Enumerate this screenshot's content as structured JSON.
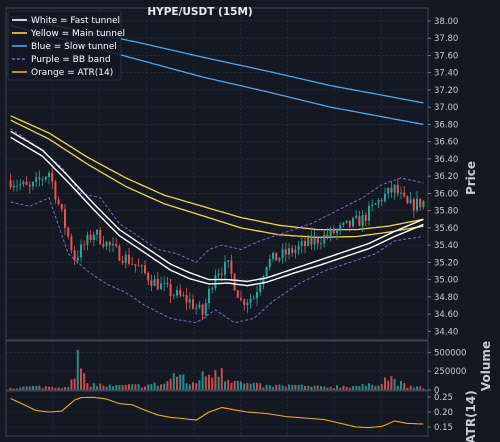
{
  "chart_data": {
    "type": "candlestick",
    "title": "HYPE/USDT (15M)",
    "colors": {
      "background": "#141823",
      "grid": "#2a3040",
      "up": "#26a69a",
      "down": "#ef5350",
      "fast_tunnel": "#ffffff",
      "main_tunnel": "#f5d34a",
      "slow_tunnel": "#4aa8f0",
      "bb_band": "#8a63d2",
      "atr": "#f5a623"
    },
    "legend": {
      "placement": "top-left",
      "entries": [
        {
          "label": "White = Fast tunnel",
          "color": "#ffffff",
          "dash": false
        },
        {
          "label": "Yellow = Main tunnel",
          "color": "#f5d34a",
          "dash": false
        },
        {
          "label": "Blue = Slow tunnel",
          "color": "#4aa8f0",
          "dash": false
        },
        {
          "label": "Purple = BB band",
          "color": "#8a63d2",
          "dash": true
        },
        {
          "label": "Orange = ATR(14)",
          "color": "#f5a623",
          "dash": false
        }
      ]
    },
    "price_panel": {
      "ylabel": "Price",
      "ylim": [
        34.3,
        38.15
      ],
      "yticks": [
        "34.40",
        "34.60",
        "34.80",
        "35.00",
        "35.20",
        "35.40",
        "35.60",
        "35.80",
        "36.00",
        "36.20",
        "36.40",
        "36.60",
        "36.80",
        "37.00",
        "37.20",
        "37.40",
        "37.60",
        "37.80",
        "38.00"
      ],
      "bars": 130,
      "candle_anchors": [
        [
          0,
          36.15
        ],
        [
          6,
          36.05
        ],
        [
          12,
          36.25
        ],
        [
          16,
          35.75
        ],
        [
          20,
          35.25
        ],
        [
          26,
          35.55
        ],
        [
          32,
          35.35
        ],
        [
          38,
          35.2
        ],
        [
          44,
          35.0
        ],
        [
          50,
          34.85
        ],
        [
          56,
          34.75
        ],
        [
          60,
          34.6
        ],
        [
          64,
          35.1
        ],
        [
          68,
          35.15
        ],
        [
          72,
          34.75
        ],
        [
          76,
          34.8
        ],
        [
          80,
          35.2
        ],
        [
          86,
          35.3
        ],
        [
          92,
          35.4
        ],
        [
          98,
          35.5
        ],
        [
          104,
          35.6
        ],
        [
          110,
          35.7
        ],
        [
          116,
          35.95
        ],
        [
          120,
          36.05
        ],
        [
          124,
          35.85
        ],
        [
          129,
          35.9
        ]
      ],
      "fast_tunnel": [
        {
          "name": "fast_upper",
          "points": [
            [
              0,
              36.72
            ],
            [
              10,
              36.5
            ],
            [
              18,
              36.2
            ],
            [
              26,
              35.88
            ],
            [
              34,
              35.58
            ],
            [
              42,
              35.38
            ],
            [
              50,
              35.18
            ],
            [
              56,
              35.08
            ],
            [
              62,
              35.0
            ],
            [
              68,
              35.0
            ],
            [
              74,
              34.98
            ],
            [
              80,
              35.02
            ],
            [
              88,
              35.12
            ],
            [
              96,
              35.22
            ],
            [
              104,
              35.32
            ],
            [
              112,
              35.42
            ],
            [
              120,
              35.56
            ],
            [
              129,
              35.7
            ]
          ]
        },
        {
          "name": "fast_lower",
          "points": [
            [
              0,
              36.65
            ],
            [
              10,
              36.43
            ],
            [
              18,
              36.13
            ],
            [
              26,
              35.81
            ],
            [
              34,
              35.51
            ],
            [
              42,
              35.31
            ],
            [
              50,
              35.11
            ],
            [
              56,
              35.01
            ],
            [
              62,
              34.95
            ],
            [
              68,
              34.96
            ],
            [
              74,
              34.93
            ],
            [
              80,
              34.97
            ],
            [
              88,
              35.07
            ],
            [
              96,
              35.16
            ],
            [
              104,
              35.26
            ],
            [
              112,
              35.36
            ],
            [
              120,
              35.5
            ],
            [
              129,
              35.64
            ]
          ]
        }
      ],
      "main_tunnel": [
        {
          "name": "main_upper",
          "points": [
            [
              0,
              36.9
            ],
            [
              12,
              36.7
            ],
            [
              24,
              36.42
            ],
            [
              36,
              36.18
            ],
            [
              48,
              35.98
            ],
            [
              60,
              35.85
            ],
            [
              72,
              35.72
            ],
            [
              84,
              35.63
            ],
            [
              96,
              35.58
            ],
            [
              108,
              35.58
            ],
            [
              118,
              35.62
            ],
            [
              129,
              35.7
            ]
          ]
        },
        {
          "name": "main_lower",
          "points": [
            [
              0,
              36.85
            ],
            [
              12,
              36.63
            ],
            [
              24,
              36.34
            ],
            [
              36,
              36.08
            ],
            [
              48,
              35.88
            ],
            [
              60,
              35.74
            ],
            [
              72,
              35.6
            ],
            [
              84,
              35.52
            ],
            [
              96,
              35.49
            ],
            [
              108,
              35.5
            ],
            [
              118,
              35.55
            ],
            [
              129,
              35.62
            ]
          ]
        }
      ],
      "slow_tunnel": [
        {
          "name": "slow_upper",
          "points": [
            [
              0,
              38.05
            ],
            [
              20,
              37.9
            ],
            [
              40,
              37.75
            ],
            [
              60,
              37.58
            ],
            [
              80,
              37.42
            ],
            [
              100,
              37.25
            ],
            [
              129,
              37.05
            ]
          ]
        },
        {
          "name": "slow_lower",
          "points": [
            [
              0,
              37.95
            ],
            [
              20,
              37.75
            ],
            [
              40,
              37.55
            ],
            [
              60,
              37.35
            ],
            [
              80,
              37.18
            ],
            [
              100,
              37.0
            ],
            [
              129,
              36.8
            ]
          ]
        }
      ],
      "bb_band": [
        {
          "name": "bb_upper",
          "points": [
            [
              0,
              36.75
            ],
            [
              8,
              36.55
            ],
            [
              16,
              36.3
            ],
            [
              22,
              36.0
            ],
            [
              28,
              35.95
            ],
            [
              34,
              35.65
            ],
            [
              40,
              35.5
            ],
            [
              46,
              35.35
            ],
            [
              52,
              35.3
            ],
            [
              58,
              35.2
            ],
            [
              62,
              35.35
            ],
            [
              66,
              35.4
            ],
            [
              72,
              35.35
            ],
            [
              78,
              35.45
            ],
            [
              86,
              35.55
            ],
            [
              94,
              35.65
            ],
            [
              102,
              35.8
            ],
            [
              110,
              35.95
            ],
            [
              116,
              36.1
            ],
            [
              122,
              36.18
            ],
            [
              129,
              36.12
            ]
          ]
        },
        {
          "name": "bb_lower",
          "points": [
            [
              0,
              35.9
            ],
            [
              6,
              35.85
            ],
            [
              12,
              35.95
            ],
            [
              18,
              35.3
            ],
            [
              24,
              35.1
            ],
            [
              30,
              34.95
            ],
            [
              36,
              34.85
            ],
            [
              42,
              34.7
            ],
            [
              50,
              34.55
            ],
            [
              58,
              34.5
            ],
            [
              64,
              34.65
            ],
            [
              70,
              34.5
            ],
            [
              76,
              34.55
            ],
            [
              82,
              34.75
            ],
            [
              90,
              34.95
            ],
            [
              98,
              35.1
            ],
            [
              106,
              35.2
            ],
            [
              114,
              35.3
            ],
            [
              120,
              35.45
            ],
            [
              129,
              35.5
            ]
          ]
        }
      ]
    },
    "volume_panel": {
      "ylabel": "Volume",
      "ylim": [
        0,
        650000
      ],
      "yticks": [
        "0",
        "250000",
        "500000"
      ],
      "volume_anchors": [
        [
          0,
          30000
        ],
        [
          8,
          45000
        ],
        [
          16,
          40000
        ],
        [
          20,
          120000
        ],
        [
          21,
          590000
        ],
        [
          22,
          220000
        ],
        [
          24,
          80000
        ],
        [
          32,
          50000
        ],
        [
          40,
          60000
        ],
        [
          48,
          80000
        ],
        [
          52,
          220000
        ],
        [
          56,
          70000
        ],
        [
          60,
          180000
        ],
        [
          66,
          320000
        ],
        [
          67,
          190000
        ],
        [
          72,
          90000
        ],
        [
          80,
          50000
        ],
        [
          88,
          60000
        ],
        [
          96,
          40000
        ],
        [
          104,
          50000
        ],
        [
          112,
          60000
        ],
        [
          118,
          160000
        ],
        [
          120,
          130000
        ],
        [
          124,
          40000
        ],
        [
          129,
          35000
        ]
      ]
    },
    "atr_panel": {
      "ylabel": "ATR(14)",
      "ylim": [
        0.12,
        0.27
      ],
      "yticks": [
        "0.15",
        "0.20",
        "0.25"
      ],
      "points": [
        [
          0,
          0.245
        ],
        [
          4,
          0.225
        ],
        [
          8,
          0.205
        ],
        [
          12,
          0.2
        ],
        [
          16,
          0.203
        ],
        [
          20,
          0.24
        ],
        [
          22,
          0.248
        ],
        [
          26,
          0.249
        ],
        [
          30,
          0.243
        ],
        [
          34,
          0.228
        ],
        [
          38,
          0.224
        ],
        [
          42,
          0.206
        ],
        [
          46,
          0.19
        ],
        [
          50,
          0.182
        ],
        [
          54,
          0.178
        ],
        [
          58,
          0.173
        ],
        [
          62,
          0.2
        ],
        [
          66,
          0.215
        ],
        [
          70,
          0.207
        ],
        [
          74,
          0.2
        ],
        [
          80,
          0.195
        ],
        [
          86,
          0.185
        ],
        [
          92,
          0.18
        ],
        [
          98,
          0.175
        ],
        [
          104,
          0.16
        ],
        [
          108,
          0.15
        ],
        [
          112,
          0.148
        ],
        [
          116,
          0.152
        ],
        [
          120,
          0.17
        ],
        [
          124,
          0.162
        ],
        [
          129,
          0.16
        ]
      ]
    }
  }
}
